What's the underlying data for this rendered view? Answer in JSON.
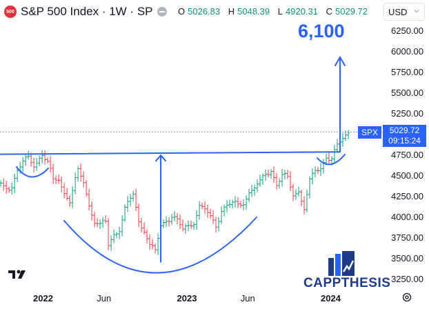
{
  "header": {
    "symbol_badge": "500",
    "title": "S&P 500 Index · 1W · SP",
    "ohlc": [
      {
        "key": "O",
        "value": "5026.83"
      },
      {
        "key": "H",
        "value": "5048.39"
      },
      {
        "key": "L",
        "value": "4920.31"
      },
      {
        "key": "C",
        "value": "5029.72"
      }
    ],
    "currency": "USD"
  },
  "annotations": {
    "target_label": "6,100",
    "symbol_tag": "SPX",
    "last_price": "5029.72",
    "countdown": "09:15:24"
  },
  "branding": {
    "tv_logo": "TV",
    "brand_name": "CAPPTHESIS"
  },
  "colors": {
    "up": "#089981",
    "down": "#f23645",
    "annotation": "#2962ff"
  },
  "chart_data": {
    "type": "ohlc",
    "interval": "1W",
    "ylim": [
      3150,
      6400
    ],
    "y_ticks": [
      6250,
      6000,
      5750,
      5500,
      5250,
      5000,
      4750,
      4500,
      4250,
      4000,
      3750,
      3500,
      3250
    ],
    "y_tick_labels": [
      "6250.00",
      "6000.00",
      "5750.00",
      "5500.00",
      "5250.00",
      "5000.00",
      "4750.00",
      "4500.00",
      "4250.00",
      "4000.00",
      "3750.00",
      "3500.00",
      "3250.00"
    ],
    "x_tick_labels": [
      {
        "label": "2022",
        "date": "2022-01-01",
        "bold": true
      },
      {
        "label": "Jun",
        "date": "2022-06-01",
        "bold": false
      },
      {
        "label": "2023",
        "date": "2023-01-01",
        "bold": true
      },
      {
        "label": "Jun",
        "date": "2023-06-01",
        "bold": false
      },
      {
        "label": "2024",
        "date": "2024-01-01",
        "bold": true
      }
    ],
    "series_close": [
      [
        "2021-08-30",
        4410
      ],
      [
        "2021-09-20",
        4350
      ],
      [
        "2021-10-11",
        4390
      ],
      [
        "2021-10-25",
        4560
      ],
      [
        "2021-11-08",
        4660
      ],
      [
        "2021-11-22",
        4700
      ],
      [
        "2021-12-06",
        4650
      ],
      [
        "2021-12-27",
        4760
      ],
      [
        "2022-01-10",
        4660
      ],
      [
        "2022-01-24",
        4420
      ],
      [
        "2022-02-07",
        4480
      ],
      [
        "2022-02-21",
        4300
      ],
      [
        "2022-03-07",
        4200
      ],
      [
        "2022-03-28",
        4540
      ],
      [
        "2022-04-11",
        4440
      ],
      [
        "2022-04-25",
        4150
      ],
      [
        "2022-05-09",
        3960
      ],
      [
        "2022-05-23",
        3880
      ],
      [
        "2022-06-06",
        3940
      ],
      [
        "2022-06-13",
        3670
      ],
      [
        "2022-06-27",
        3800
      ],
      [
        "2022-07-11",
        3870
      ],
      [
        "2022-07-25",
        4080
      ],
      [
        "2022-08-15",
        4280
      ],
      [
        "2022-08-29",
        3950
      ],
      [
        "2022-09-12",
        3870
      ],
      [
        "2022-09-26",
        3640
      ],
      [
        "2022-10-10",
        3590
      ],
      [
        "2022-10-24",
        3880
      ],
      [
        "2022-11-07",
        3990
      ],
      [
        "2022-11-21",
        4020
      ],
      [
        "2022-12-05",
        3950
      ],
      [
        "2022-12-19",
        3840
      ],
      [
        "2023-01-02",
        3890
      ],
      [
        "2023-01-16",
        3970
      ],
      [
        "2023-01-30",
        4130
      ],
      [
        "2023-02-13",
        4090
      ],
      [
        "2023-02-27",
        3980
      ],
      [
        "2023-03-13",
        3910
      ],
      [
        "2023-03-27",
        4100
      ],
      [
        "2023-04-10",
        4140
      ],
      [
        "2023-04-24",
        4160
      ],
      [
        "2023-05-08",
        4130
      ],
      [
        "2023-05-22",
        4200
      ],
      [
        "2023-06-05",
        4300
      ],
      [
        "2023-06-19",
        4360
      ],
      [
        "2023-07-03",
        4400
      ],
      [
        "2023-07-17",
        4530
      ],
      [
        "2023-07-31",
        4580
      ],
      [
        "2023-08-14",
        4400
      ],
      [
        "2023-08-28",
        4500
      ],
      [
        "2023-09-11",
        4450
      ],
      [
        "2023-09-25",
        4290
      ],
      [
        "2023-10-09",
        4320
      ],
      [
        "2023-10-23",
        4120
      ],
      [
        "2023-11-06",
        4410
      ],
      [
        "2023-11-20",
        4560
      ],
      [
        "2023-12-04",
        4600
      ],
      [
        "2023-12-18",
        4750
      ],
      [
        "2024-01-01",
        4700
      ],
      [
        "2024-01-15",
        4840
      ],
      [
        "2024-01-29",
        4960
      ],
      [
        "2024-02-12",
        5030
      ]
    ],
    "neckline": {
      "from": [
        "2021-08-01",
        4760
      ],
      "to": [
        "2024-01-22",
        4790
      ]
    },
    "cup_bottom": [
      "2022-10-10",
      3470
    ],
    "measured_move_target": 6100,
    "last_close": 5029.72
  }
}
